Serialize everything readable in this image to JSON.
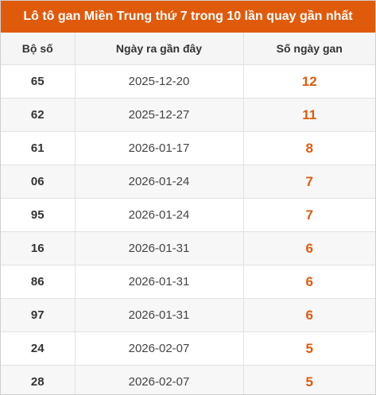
{
  "title": "Lô tô gan Miền Trung thứ 7 trong 10 lần quay gần nhất",
  "colors": {
    "header_bg": "#e05a0c",
    "header_text": "#ffffff",
    "gan_value": "#e05a0c",
    "alt_row_bg": "#f7f7f7"
  },
  "table": {
    "headers": [
      "Bộ số",
      "Ngày ra gần đây",
      "Số ngày gan"
    ],
    "rows": [
      {
        "number": "65",
        "last_date": "2025-12-20",
        "gan_days": "12"
      },
      {
        "number": "62",
        "last_date": "2025-12-27",
        "gan_days": "11"
      },
      {
        "number": "61",
        "last_date": "2026-01-17",
        "gan_days": "8"
      },
      {
        "number": "06",
        "last_date": "2026-01-24",
        "gan_days": "7"
      },
      {
        "number": "95",
        "last_date": "2026-01-24",
        "gan_days": "7"
      },
      {
        "number": "16",
        "last_date": "2026-01-31",
        "gan_days": "6"
      },
      {
        "number": "86",
        "last_date": "2026-01-31",
        "gan_days": "6"
      },
      {
        "number": "97",
        "last_date": "2026-01-31",
        "gan_days": "6"
      },
      {
        "number": "24",
        "last_date": "2026-02-07",
        "gan_days": "5"
      },
      {
        "number": "28",
        "last_date": "2026-02-07",
        "gan_days": "5"
      }
    ]
  }
}
